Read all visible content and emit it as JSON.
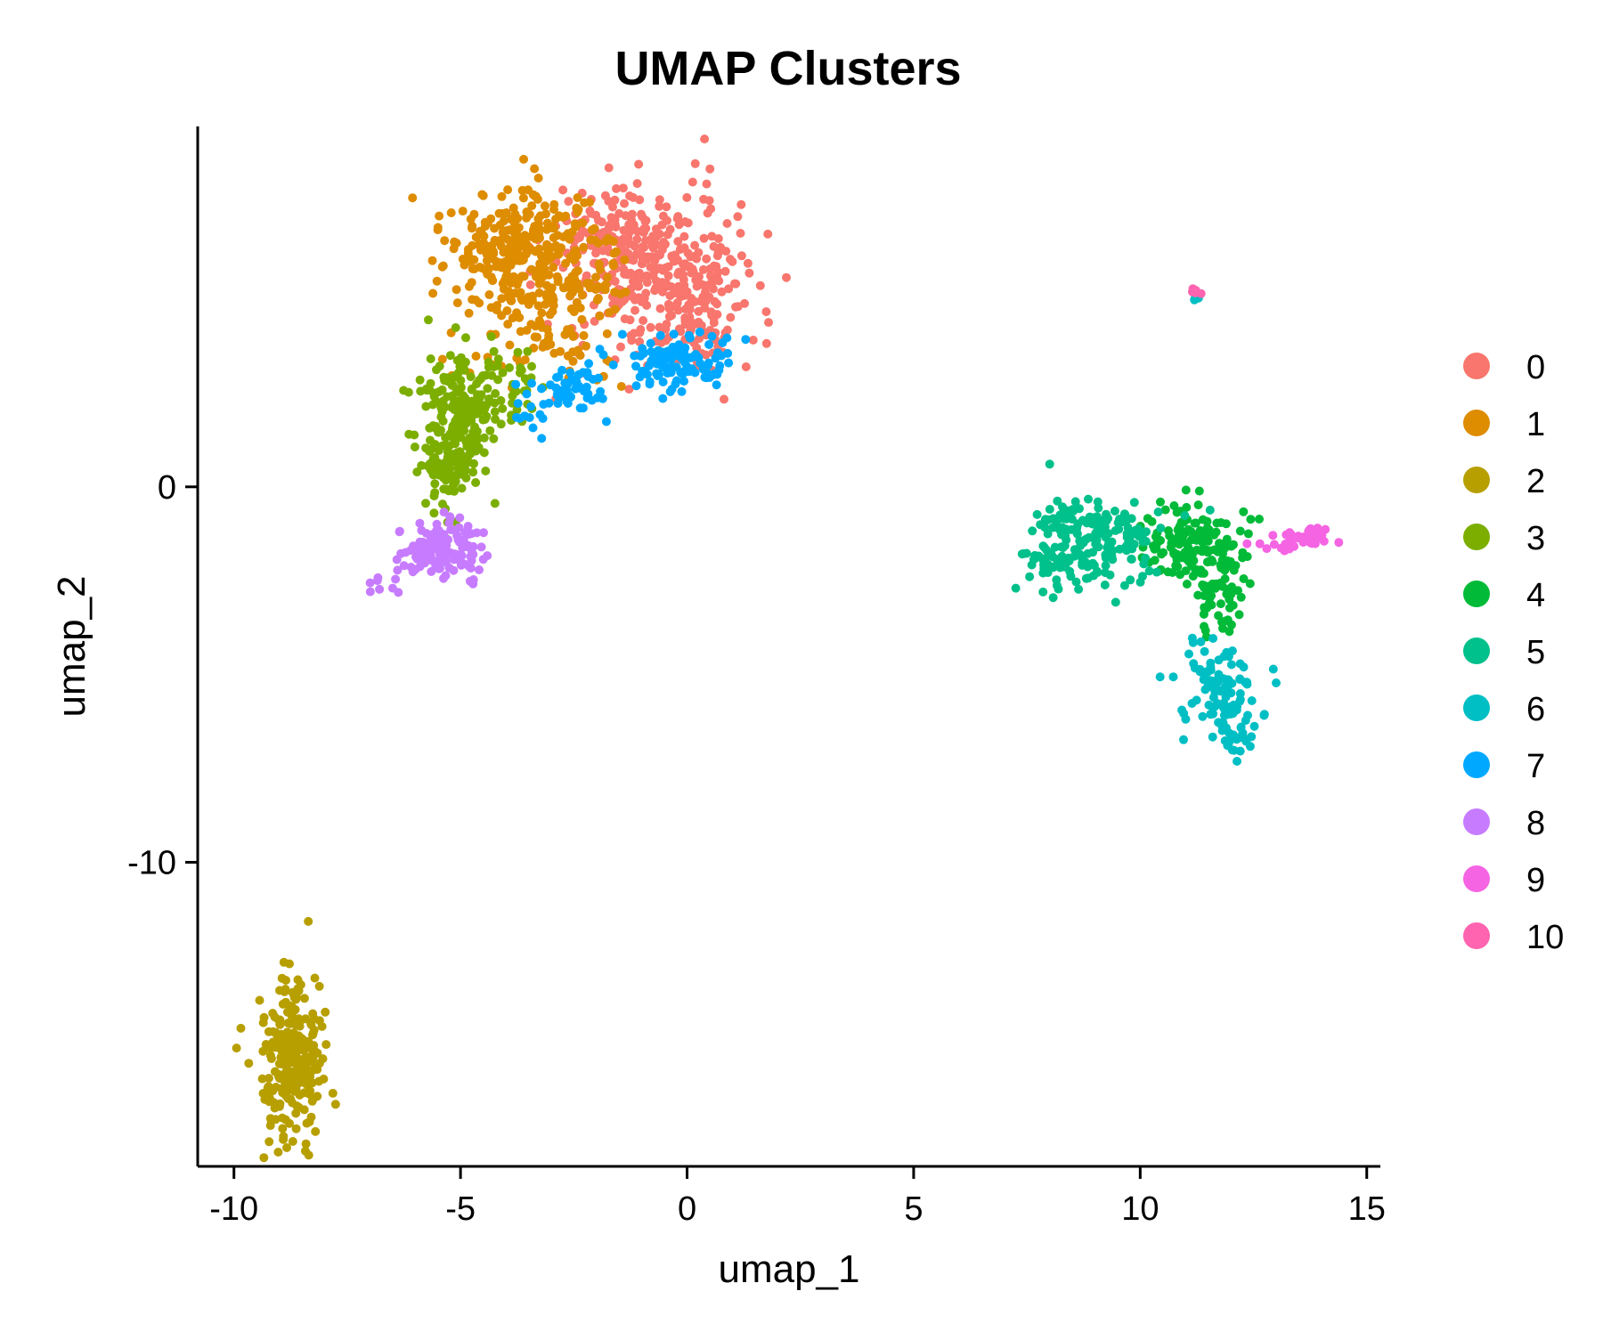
{
  "chart_data": {
    "type": "scatter",
    "title": "UMAP Clusters",
    "xlabel": "umap_1",
    "ylabel": "umap_2",
    "xlim": [
      -10.8,
      15.3
    ],
    "ylim": [
      -18.1,
      9.6
    ],
    "xticks": [
      -10,
      -5,
      0,
      5,
      10,
      15
    ],
    "xtick_labels": [
      "-10",
      "-5",
      "0",
      "5",
      "10",
      "15"
    ],
    "yticks": [
      0,
      -10
    ],
    "ytick_labels": [
      "0",
      "-10"
    ],
    "grid": false,
    "legend_position": "right",
    "series": [
      {
        "name": "0",
        "color": "#F8766D",
        "clusters": [
          {
            "cx": -0.9,
            "cy": 5.6,
            "sx": 0.9,
            "sy": 1.2,
            "n": 260
          },
          {
            "cx": 0.2,
            "cy": 5.2,
            "sx": 0.6,
            "sy": 1.0,
            "n": 120
          },
          {
            "cx": -1.7,
            "cy": 6.8,
            "sx": 0.6,
            "sy": 0.6,
            "n": 80
          }
        ]
      },
      {
        "name": "1",
        "color": "#DE8C00",
        "clusters": [
          {
            "cx": -3.6,
            "cy": 6.4,
            "sx": 0.9,
            "sy": 0.8,
            "n": 280
          },
          {
            "cx": -2.9,
            "cy": 4.9,
            "sx": 0.8,
            "sy": 0.7,
            "n": 90
          },
          {
            "cx": -3.4,
            "cy": 3.6,
            "sx": 1.0,
            "sy": 0.6,
            "n": 40
          }
        ]
      },
      {
        "name": "2",
        "color": "#B79F00",
        "clusters": [
          {
            "cx": -8.7,
            "cy": -15.2,
            "sx": 0.35,
            "sy": 1.1,
            "n": 260
          }
        ]
      },
      {
        "name": "3",
        "color": "#7CAE00",
        "clusters": [
          {
            "cx": -5.0,
            "cy": 2.0,
            "sx": 0.45,
            "sy": 0.8,
            "n": 180
          },
          {
            "cx": -5.3,
            "cy": 0.4,
            "sx": 0.3,
            "sy": 0.6,
            "n": 60
          },
          {
            "cx": -4.0,
            "cy": 2.7,
            "sx": 0.5,
            "sy": 0.5,
            "n": 40
          }
        ]
      },
      {
        "name": "4",
        "color": "#00BA38",
        "clusters": [
          {
            "cx": 11.1,
            "cy": -1.5,
            "sx": 0.55,
            "sy": 0.5,
            "n": 140
          },
          {
            "cx": 11.8,
            "cy": -3.0,
            "sx": 0.35,
            "sy": 0.6,
            "n": 60
          }
        ]
      },
      {
        "name": "5",
        "color": "#00C08B",
        "clusters": [
          {
            "cx": 9.0,
            "cy": -1.4,
            "sx": 0.75,
            "sy": 0.6,
            "n": 170
          },
          {
            "cx": 8.0,
            "cy": -2.0,
            "sx": 0.3,
            "sy": 0.3,
            "n": 40
          }
        ]
      },
      {
        "name": "6",
        "color": "#00BFC4",
        "clusters": [
          {
            "cx": 11.8,
            "cy": -5.3,
            "sx": 0.45,
            "sy": 0.6,
            "n": 80
          },
          {
            "cx": 12.1,
            "cy": -6.4,
            "sx": 0.2,
            "sy": 0.4,
            "n": 40
          },
          {
            "cx": 11.25,
            "cy": 5.0,
            "sx": 0.05,
            "sy": 0.05,
            "n": 4
          }
        ]
      },
      {
        "name": "7",
        "color": "#00A9FF",
        "clusters": [
          {
            "cx": -0.3,
            "cy": 3.3,
            "sx": 0.6,
            "sy": 0.35,
            "n": 120
          },
          {
            "cx": -2.5,
            "cy": 2.6,
            "sx": 0.5,
            "sy": 0.35,
            "n": 50
          },
          {
            "cx": -3.3,
            "cy": 1.8,
            "sx": 0.3,
            "sy": 0.4,
            "n": 12
          }
        ]
      },
      {
        "name": "8",
        "color": "#C77CFF",
        "clusters": [
          {
            "cx": -5.4,
            "cy": -1.7,
            "sx": 0.45,
            "sy": 0.4,
            "n": 140
          },
          {
            "cx": -6.4,
            "cy": -2.3,
            "sx": 0.3,
            "sy": 0.2,
            "n": 8
          },
          {
            "cx": -6.9,
            "cy": -2.6,
            "sx": 0.1,
            "sy": 0.1,
            "n": 5
          }
        ]
      },
      {
        "name": "9",
        "color": "#F564E3",
        "clusters": [
          {
            "cx": 13.7,
            "cy": -1.3,
            "sx": 0.3,
            "sy": 0.12,
            "n": 30
          },
          {
            "cx": 13.0,
            "cy": -1.6,
            "sx": 0.2,
            "sy": 0.06,
            "n": 8
          }
        ]
      },
      {
        "name": "10",
        "color": "#FF64B0",
        "clusters": [
          {
            "cx": 11.2,
            "cy": 5.2,
            "sx": 0.05,
            "sy": 0.05,
            "n": 6
          }
        ]
      }
    ]
  }
}
